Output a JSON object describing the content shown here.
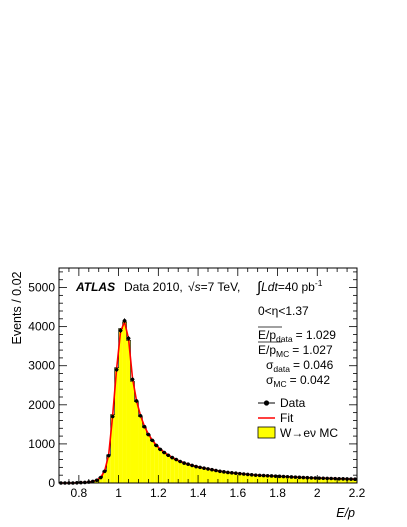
{
  "chart_data": {
    "type": "bar",
    "title": "",
    "xlabel": "E/p",
    "ylabel": "Events / 0.02",
    "xlim": [
      0.7,
      2.2
    ],
    "ylim": [
      0,
      5500
    ],
    "x_ticks": [
      "0.8",
      "1",
      "1.2",
      "1.4",
      "1.6",
      "1.8",
      "2",
      "2.2"
    ],
    "x_tick_values": [
      0.8,
      1.0,
      1.2,
      1.4,
      1.6,
      1.8,
      2.0,
      2.2
    ],
    "y_ticks": [
      "0",
      "1000",
      "2000",
      "3000",
      "4000",
      "5000"
    ],
    "y_tick_values": [
      0,
      1000,
      2000,
      3000,
      4000,
      5000
    ],
    "bin_width": 0.02,
    "bin_centers": [
      0.71,
      0.73,
      0.75,
      0.77,
      0.79,
      0.81,
      0.83,
      0.85,
      0.87,
      0.89,
      0.91,
      0.93,
      0.95,
      0.97,
      0.99,
      1.01,
      1.03,
      1.05,
      1.07,
      1.09,
      1.11,
      1.13,
      1.15,
      1.17,
      1.19,
      1.21,
      1.23,
      1.25,
      1.27,
      1.29,
      1.31,
      1.33,
      1.35,
      1.37,
      1.39,
      1.41,
      1.43,
      1.45,
      1.47,
      1.49,
      1.51,
      1.53,
      1.55,
      1.57,
      1.59,
      1.61,
      1.63,
      1.65,
      1.67,
      1.69,
      1.71,
      1.73,
      1.75,
      1.77,
      1.79,
      1.81,
      1.83,
      1.85,
      1.87,
      1.89,
      1.91,
      1.93,
      1.95,
      1.97,
      1.99,
      2.01,
      2.03,
      2.05,
      2.07,
      2.09,
      2.11,
      2.13,
      2.15,
      2.17,
      2.19
    ],
    "series": [
      {
        "name": "Data",
        "style": "points",
        "values": [
          0,
          0,
          0,
          0,
          5,
          10,
          15,
          25,
          40,
          70,
          140,
          300,
          700,
          1700,
          2900,
          3900,
          4150,
          3700,
          2650,
          2100,
          1720,
          1440,
          1240,
          1090,
          960,
          860,
          780,
          710,
          650,
          600,
          550,
          510,
          480,
          450,
          420,
          400,
          380,
          360,
          340,
          320,
          300,
          285,
          270,
          260,
          250,
          240,
          230,
          220,
          210,
          200,
          195,
          190,
          185,
          180,
          175,
          170,
          165,
          160,
          155,
          150,
          145,
          140,
          135,
          130,
          127,
          124,
          121,
          118,
          115,
          112,
          109,
          106,
          103,
          100,
          97
        ]
      },
      {
        "name": "Fit",
        "style": "line",
        "values": [
          0,
          0,
          0,
          0,
          4,
          8,
          14,
          24,
          40,
          72,
          145,
          310,
          720,
          1720,
          2920,
          3880,
          4120,
          3690,
          2680,
          2110,
          1730,
          1450,
          1250,
          1095,
          965,
          865,
          785,
          715,
          655,
          603,
          555,
          514,
          482,
          452,
          423,
          402,
          381,
          361,
          341,
          321,
          302,
          287,
          272,
          261,
          251,
          241,
          231,
          221,
          211,
          202,
          196,
          191,
          186,
          181,
          176,
          171,
          166,
          161,
          156,
          151,
          146,
          141,
          136,
          131,
          128,
          125,
          122,
          119,
          116,
          113,
          110,
          107,
          104,
          101,
          98
        ]
      },
      {
        "name": "W→eν MC",
        "style": "filled",
        "values": [
          0,
          0,
          0,
          0,
          5,
          10,
          15,
          26,
          42,
          72,
          150,
          310,
          720,
          1750,
          2950,
          3950,
          4120,
          3650,
          2600,
          2080,
          1700,
          1420,
          1230,
          1080,
          950,
          850,
          770,
          705,
          645,
          595,
          548,
          508,
          478,
          448,
          418,
          398,
          378,
          358,
          338,
          318,
          298,
          283,
          268,
          258,
          248,
          238,
          228,
          218,
          208,
          198,
          193,
          188,
          183,
          178,
          173,
          168,
          163,
          158,
          153,
          148,
          143,
          138,
          133,
          128,
          125,
          122,
          119,
          116,
          113,
          110,
          107,
          104,
          101,
          98,
          95
        ]
      }
    ],
    "legend": {
      "position": "right",
      "entries": [
        {
          "label": "Data",
          "marker": "point-with-line",
          "color": "#000000"
        },
        {
          "label": "Fit",
          "marker": "line",
          "color": "#ff0000"
        },
        {
          "label": "W→eν MC",
          "marker": "filled-box",
          "color": "#ffff00"
        }
      ]
    },
    "annotations": {
      "experiment": "ATLAS",
      "dataset": "Data 2010,",
      "energy_prefix": "√",
      "energy_s": "s",
      "energy_rest": "=7 TeV,",
      "lumi_integral": "∫",
      "lumi_L": "L",
      "lumi_dt": "dt",
      "lumi_value": "=40 pb",
      "lumi_exp": "-1",
      "eta_range": "0<η<1.37",
      "stats": [
        {
          "label": "E/p",
          "sub": "data",
          "value": "= 1.029"
        },
        {
          "label": "E/p",
          "sub": "MC",
          "value": "= 1.027"
        },
        {
          "label": "σ",
          "sub": "data",
          "value": "= 0.046"
        },
        {
          "label": "σ",
          "sub": "MC",
          "value": "= 0.042"
        }
      ]
    },
    "colors": {
      "mc_fill": "#ffff00",
      "fit_line": "#ff0000",
      "data": "#000000",
      "frame": "#000000"
    },
    "grid": false
  }
}
